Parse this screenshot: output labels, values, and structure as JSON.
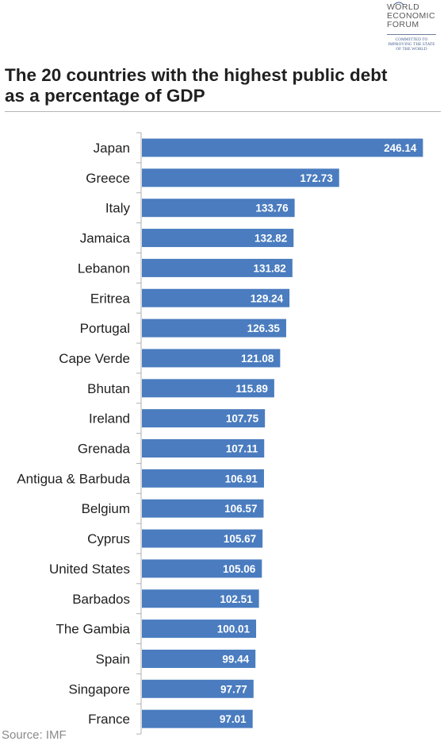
{
  "logo": {
    "words": [
      "WORLD",
      "ECONOMIC",
      "FORUM"
    ],
    "tagline": "COMMITTED TO IMPROVING THE STATE OF THE WORLD"
  },
  "title": "The 20 countries with the highest public debt as a percentage of GDP",
  "source": "Source: IMF",
  "colors": {
    "bar": "#4a7cbf",
    "axis": "#b0b0b0",
    "value_text": "#ffffff"
  },
  "chart_data": {
    "type": "bar",
    "orientation": "horizontal",
    "title": "The 20 countries with the highest public debt as a percentage of GDP",
    "categories": [
      "Japan",
      "Greece",
      "Italy",
      "Jamaica",
      "Lebanon",
      "Eritrea",
      "Portugal",
      "Cape Verde",
      "Bhutan",
      "Ireland",
      "Grenada",
      "Antigua & Barbuda",
      "Belgium",
      "Cyprus",
      "United States",
      "Barbados",
      "The Gambia",
      "Spain",
      "Singapore",
      "France"
    ],
    "values": [
      246.14,
      172.73,
      133.76,
      132.82,
      131.82,
      129.24,
      126.35,
      121.08,
      115.89,
      107.75,
      107.11,
      106.91,
      106.57,
      105.67,
      105.06,
      102.51,
      100.01,
      99.44,
      97.77,
      97.01
    ],
    "value_labels": [
      "246.14",
      "172.73",
      "133.76",
      "132.82",
      "131.82",
      "129.24",
      "126.35",
      "121.08",
      "115.89",
      "107.75",
      "107.11",
      "106.91",
      "106.57",
      "105.67",
      "105.06",
      "102.51",
      "100.01",
      "99.44",
      "97.77",
      "97.01"
    ],
    "xlim": [
      0,
      250
    ],
    "grid": false,
    "legend": "none",
    "data_labels": "inside-end"
  }
}
